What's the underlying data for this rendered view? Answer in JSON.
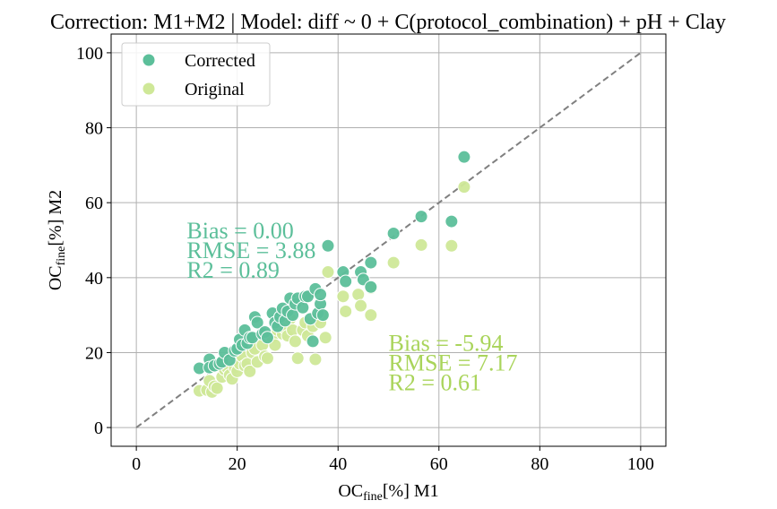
{
  "chart_data": {
    "type": "scatter",
    "title": "Correction: M1+M2 | Model: diff ~ 0 + C(protocol_combination) + pH + Clay",
    "xlabel": {
      "main": "OC",
      "sub": "fine",
      "rest": "[%] M1"
    },
    "ylabel": {
      "main": "OC",
      "sub": "fine",
      "rest": "[%] M2"
    },
    "xlim": [
      -5,
      105
    ],
    "ylim": [
      -5,
      105
    ],
    "xticks": [
      0,
      20,
      40,
      60,
      80,
      100
    ],
    "yticks": [
      0,
      20,
      40,
      60,
      80,
      100
    ],
    "grid": true,
    "legend_position": "top-left",
    "reference_line": {
      "style": "dashed",
      "color": "#808080",
      "from": [
        0,
        0
      ],
      "to": [
        100,
        100
      ]
    },
    "series": [
      {
        "name": "Corrected",
        "color": "#5cbf9a",
        "points": [
          [
            12.5,
            15.8
          ],
          [
            14.5,
            18.2
          ],
          [
            14.5,
            16
          ],
          [
            15.5,
            16.5
          ],
          [
            16.5,
            17
          ],
          [
            17,
            17.5
          ],
          [
            17.5,
            20
          ],
          [
            18.5,
            18
          ],
          [
            19.5,
            20.5
          ],
          [
            20,
            21
          ],
          [
            20.5,
            23.5
          ],
          [
            21,
            22
          ],
          [
            21.5,
            26
          ],
          [
            22,
            22.5
          ],
          [
            22.5,
            24
          ],
          [
            23,
            24
          ],
          [
            23.5,
            29.5
          ],
          [
            24,
            28
          ],
          [
            25,
            25
          ],
          [
            25.5,
            25.5
          ],
          [
            26,
            24
          ],
          [
            27,
            30.5
          ],
          [
            27.5,
            28
          ],
          [
            28,
            27
          ],
          [
            28.5,
            29.5
          ],
          [
            29,
            31.8
          ],
          [
            29.5,
            28.5
          ],
          [
            30,
            31
          ],
          [
            30.5,
            34.5
          ],
          [
            31,
            30
          ],
          [
            31.5,
            33
          ],
          [
            32,
            34.5
          ],
          [
            33,
            32
          ],
          [
            33.5,
            35
          ],
          [
            34,
            35
          ],
          [
            34.5,
            29
          ],
          [
            35,
            23
          ],
          [
            35.5,
            37
          ],
          [
            36,
            30.5
          ],
          [
            36.5,
            33
          ],
          [
            36.5,
            35.5
          ],
          [
            37,
            30
          ],
          [
            38,
            48.5
          ],
          [
            41,
            41.5
          ],
          [
            41.5,
            39
          ],
          [
            44.5,
            41.5
          ],
          [
            45,
            39.5
          ],
          [
            46.5,
            37.5
          ],
          [
            46.5,
            44
          ],
          [
            51,
            51.8
          ],
          [
            56.5,
            56.3
          ],
          [
            62.5,
            55
          ],
          [
            65,
            72.2
          ]
        ]
      },
      {
        "name": "Original",
        "color": "#cfe898",
        "points": [
          [
            12.5,
            9.8
          ],
          [
            14,
            10
          ],
          [
            14.5,
            12.5
          ],
          [
            15,
            9.5
          ],
          [
            15.5,
            11
          ],
          [
            16,
            10.5
          ],
          [
            17,
            13.5
          ],
          [
            17.5,
            15.5
          ],
          [
            18,
            16
          ],
          [
            18.5,
            14
          ],
          [
            19,
            13
          ],
          [
            19.5,
            16
          ],
          [
            20,
            15
          ],
          [
            20.5,
            17
          ],
          [
            21,
            19
          ],
          [
            21.5,
            16.5
          ],
          [
            22,
            17
          ],
          [
            22.5,
            15
          ],
          [
            23,
            20
          ],
          [
            23.5,
            21
          ],
          [
            24,
            17.5
          ],
          [
            25,
            22
          ],
          [
            25.5,
            19
          ],
          [
            26,
            18.5
          ],
          [
            27,
            24
          ],
          [
            27.5,
            22
          ],
          [
            28,
            26
          ],
          [
            29,
            25
          ],
          [
            29.5,
            26.5
          ],
          [
            30,
            24.5
          ],
          [
            30.5,
            29
          ],
          [
            31,
            26
          ],
          [
            31.5,
            23
          ],
          [
            32,
            18.5
          ],
          [
            33,
            26
          ],
          [
            33.5,
            28
          ],
          [
            34,
            24.5
          ],
          [
            35,
            27
          ],
          [
            35.5,
            18.2
          ],
          [
            36,
            29
          ],
          [
            36.5,
            28
          ],
          [
            37,
            30
          ],
          [
            37.5,
            24
          ],
          [
            38,
            41.5
          ],
          [
            41,
            35
          ],
          [
            41.5,
            31
          ],
          [
            44,
            35.5
          ],
          [
            44.5,
            32.5
          ],
          [
            46.5,
            30
          ],
          [
            46.5,
            37.2
          ],
          [
            51,
            44
          ],
          [
            56.5,
            48.7
          ],
          [
            62.5,
            48.5
          ],
          [
            65,
            64.2
          ]
        ]
      }
    ],
    "annotations": [
      {
        "series": "Corrected",
        "x": 10,
        "y": 40,
        "lines": [
          "Bias = 0.00",
          "RMSE = 3.88",
          "R2 = 0.89"
        ]
      },
      {
        "series": "Original",
        "x": 50,
        "y": 10,
        "lines": [
          "Bias = -5.94",
          "RMSE = 7.17",
          "R2 = 0.61"
        ]
      }
    ]
  }
}
